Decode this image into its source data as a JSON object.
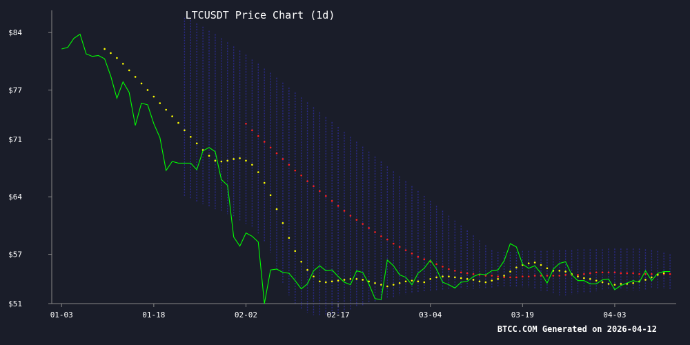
{
  "chart_data": {
    "type": "line",
    "title": "LTCUSDT Price Chart (1d)",
    "footer": "BTCC.COM Generated on 2026-04-12",
    "xlabel": "",
    "ylabel": "",
    "x_tick_labels": [
      "01-03",
      "01-18",
      "02-02",
      "02-17",
      "03-04",
      "03-19",
      "04-03"
    ],
    "x_tick_days": [
      0,
      15,
      30,
      45,
      60,
      75,
      90
    ],
    "y_tick_labels": [
      "$51",
      "$57",
      "$64",
      "$71",
      "$77",
      "$84"
    ],
    "y_tick_values": [
      51,
      57,
      64,
      71,
      77,
      84
    ],
    "ylim": [
      51,
      86.7
    ],
    "xlim_days": [
      -1.6,
      100
    ],
    "grid": false,
    "colors": {
      "background": "#1a1d29",
      "price": "#00ff00",
      "ma_short": "#ffff00",
      "ma_long": "#ff2020",
      "band": "#2a2a8a",
      "axis": "#888888",
      "text": "#ffffff"
    },
    "series": [
      {
        "key": "price",
        "start_day": 0,
        "values": [
          82.0,
          82.2,
          83.3,
          83.8,
          81.4,
          81.1,
          81.2,
          80.8,
          78.7,
          76.0,
          78.0,
          76.7,
          72.7,
          75.4,
          75.2,
          72.9,
          71.2,
          67.2,
          68.3,
          68.1,
          68.1,
          68.1,
          67.3,
          69.6,
          70.0,
          69.5,
          66.1,
          65.4,
          59.1,
          58.0,
          59.6,
          59.2,
          58.5,
          51.0,
          55.1,
          55.2,
          54.8,
          54.7,
          53.8,
          52.8,
          53.4,
          55.0,
          55.6,
          55.0,
          55.1,
          54.3,
          53.6,
          53.3,
          55.0,
          54.8,
          53.4,
          51.6,
          51.5,
          56.3,
          55.6,
          54.5,
          54.2,
          53.3,
          54.7,
          55.3,
          56.3,
          55.2,
          53.6,
          53.3,
          52.9,
          53.6,
          53.7,
          54.3,
          54.6,
          54.5,
          55.0,
          55.1,
          56.2,
          58.3,
          57.9,
          55.8,
          55.3,
          55.6,
          54.7,
          53.5,
          55.2,
          55.9,
          56.1,
          54.5,
          53.8,
          53.8,
          53.4,
          53.4,
          53.9,
          54.0,
          52.7,
          53.2,
          53.5,
          53.8,
          53.6,
          55.0,
          53.8,
          54.7,
          54.9,
          54.9
        ]
      },
      {
        "key": "ma_short",
        "start_day": 7,
        "values": [
          82.0,
          81.5,
          80.9,
          80.2,
          79.4,
          78.6,
          77.8,
          77.0,
          76.2,
          75.4,
          74.6,
          73.8,
          73.0,
          72.1,
          71.3,
          70.5,
          69.7,
          69.0,
          68.4,
          68.3,
          68.4,
          68.6,
          68.7,
          68.4,
          67.9,
          67.0,
          65.7,
          64.2,
          62.5,
          60.8,
          59.0,
          57.4,
          56.1,
          55.1,
          54.3,
          53.7,
          53.6,
          53.7,
          53.8,
          53.9,
          54.0,
          54.0,
          53.9,
          53.7,
          53.5,
          53.3,
          53.1,
          53.3,
          53.5,
          53.7,
          53.8,
          53.7,
          53.6,
          54.0,
          54.2,
          54.3,
          54.3,
          54.2,
          54.1,
          54.0,
          53.9,
          53.7,
          53.6,
          53.8,
          54.0,
          54.4,
          54.9,
          55.4,
          55.7,
          55.9,
          56.0,
          55.7,
          55.3,
          55.0,
          55.0,
          54.9,
          54.6,
          54.3,
          54.1,
          54.0,
          53.8,
          53.6,
          53.4,
          53.3,
          53.4,
          53.4,
          53.5,
          53.7,
          53.9,
          54.2,
          54.5,
          54.7
        ]
      },
      {
        "key": "ma_long",
        "start_day": 30,
        "values": [
          72.9,
          72.1,
          71.4,
          70.7,
          70.0,
          69.3,
          68.6,
          67.9,
          67.2,
          66.6,
          65.9,
          65.3,
          64.7,
          64.1,
          63.5,
          62.9,
          62.3,
          61.7,
          61.2,
          60.7,
          60.2,
          59.7,
          59.2,
          58.8,
          58.3,
          57.9,
          57.5,
          57.1,
          56.7,
          56.4,
          56.1,
          55.8,
          55.5,
          55.2,
          55.0,
          54.8,
          54.7,
          54.6,
          54.5,
          54.4,
          54.4,
          54.3,
          54.2,
          54.2,
          54.2,
          54.3,
          54.3,
          54.4,
          54.4,
          54.4,
          54.4,
          54.4,
          54.5,
          54.5,
          54.5,
          54.6,
          54.7,
          54.8,
          54.8,
          54.8,
          54.8,
          54.7,
          54.7,
          54.7,
          54.6,
          54.6,
          54.6,
          54.6,
          54.6,
          54.6
        ]
      },
      {
        "key": "band",
        "start_day": 20,
        "upper": [
          85.8,
          85.5,
          85.1,
          84.7,
          84.2,
          83.8,
          83.3,
          82.8,
          82.3,
          81.8,
          81.3,
          80.7,
          80.2,
          79.6,
          79.1,
          78.5,
          77.9,
          77.3,
          76.7,
          76.1,
          75.5,
          74.9,
          74.3,
          73.7,
          73.1,
          72.5,
          71.9,
          71.3,
          70.7,
          70.1,
          69.5,
          68.9,
          68.3,
          67.7,
          67.1,
          66.5,
          65.9,
          65.3,
          64.7,
          64.1,
          63.5,
          62.9,
          62.3,
          61.7,
          61.1,
          60.5,
          59.9,
          59.3,
          58.7,
          58.1,
          57.5,
          57.3,
          57.3,
          57.3,
          57.3,
          57.4,
          57.4,
          57.4,
          57.4,
          57.4,
          57.5,
          57.5,
          57.5,
          57.5,
          57.6,
          57.6,
          57.6,
          57.6,
          57.6,
          57.7,
          57.7,
          57.7,
          57.7,
          57.7,
          57.7,
          57.6,
          57.5,
          57.4,
          57.2,
          57.0
        ],
        "lower": [
          64.0,
          63.7,
          63.4,
          63.1,
          62.8,
          62.5,
          62.2,
          61.9,
          61.5,
          61.1,
          60.7,
          60.2,
          59.5,
          58.6,
          57.2,
          55.2,
          53.4,
          52.0,
          51.0,
          50.3,
          49.9,
          49.6,
          49.5,
          49.5,
          49.6,
          49.8,
          50.0,
          50.3,
          50.6,
          50.8,
          51.0,
          51.2,
          51.4,
          51.6,
          51.8,
          52.0,
          52.1,
          52.2,
          52.3,
          52.4,
          52.5,
          52.6,
          52.6,
          52.7,
          52.7,
          52.8,
          52.8,
          52.8,
          52.9,
          52.9,
          52.9,
          53.0,
          53.0,
          53.0,
          53.0,
          53.0,
          53.0,
          52.8,
          52.6,
          52.4,
          52.2,
          52.0,
          52.0,
          52.1,
          52.2,
          52.3,
          52.4,
          52.5,
          52.6,
          52.7,
          52.7,
          52.7,
          52.6,
          52.6,
          52.6,
          52.7,
          52.8,
          52.8,
          52.8,
          52.8
        ]
      }
    ]
  }
}
